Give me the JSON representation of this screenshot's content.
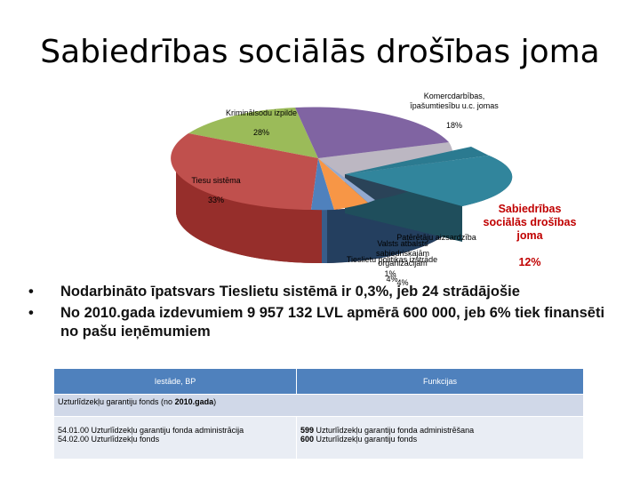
{
  "slide": {
    "title": "Sabiedrības sociālās drošības joma"
  },
  "chart_data": {
    "type": "pie",
    "title": "",
    "slices": [
      {
        "label": "Kriminālsodu izpilde",
        "value": 28,
        "text": "28%",
        "color": "#9bbb59"
      },
      {
        "label": "Komercdarbības, īpašumtiesību u.c. jomas",
        "value": 18,
        "text": "18%",
        "color": "#8064a2"
      },
      {
        "label": "Sabiedrības sociālās drošības joma",
        "value": 12,
        "text": "12%",
        "color": "#31859c"
      },
      {
        "label": "Patērētāju aizsardzība",
        "value": 1,
        "text": "",
        "color": "#93a9cf"
      },
      {
        "label": "Valsts atbalsts sabiedriskajām organizācijām",
        "value": 4,
        "text": "4%",
        "color": "#f79646"
      },
      {
        "label": "Tieslietu politikas izstrāde",
        "value": 4,
        "text": "4%",
        "color": "#4f81bd"
      },
      {
        "label": "Tiesu sistēma",
        "value": 33,
        "text": "33%",
        "color": "#c0504d"
      }
    ],
    "annotations": [
      "1%"
    ]
  },
  "bullets": [
    "Nodarbināto īpatsvars Tieslietu sistēmā ir 0,3%, jeb 24 strādājošie",
    "No 2010.gada izdevumiem 9 957 132 LVL apmērā 600 000, jeb 6% tiek finansēti no pašu ieņēmumiem"
  ],
  "table": {
    "headers": [
      "Iestāde, BP",
      "Funkcijas"
    ],
    "section_row_prefix": "Uzturlīdzekļu garantiju fonds (no ",
    "section_row_bold": "2010.gada",
    "section_row_suffix": ")",
    "left_lines": [
      "54.01.00 Uzturlīdzekļu garantiju fonda administrācija",
      "54.02.00 Uzturlīdzekļu fonds"
    ],
    "right_line1_bold": "599",
    "right_line1_text": " Uzturlīdzekļu garantiju fonda administrēšana",
    "right_line2_bold": "600",
    "right_line2_text": " Uzturlīdzekļu garantiju fonds"
  }
}
